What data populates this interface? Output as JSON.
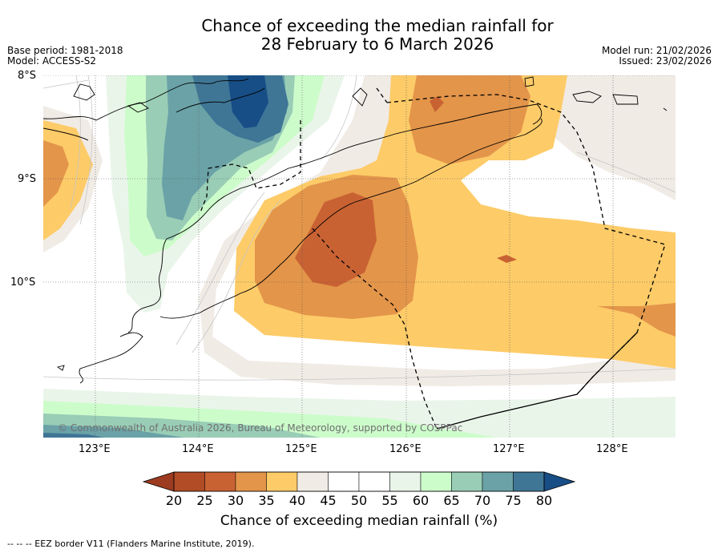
{
  "title": {
    "line1": "Chance of exceeding the median rainfall for",
    "line2": "28 February to 6 March 2026"
  },
  "meta": {
    "base_period": "Base period: 1981-2018",
    "model": "Model: ACCESS-S2",
    "model_run": "Model run: 21/02/2026",
    "issued": "Issued: 23/02/2026"
  },
  "axes": {
    "lat_labels": [
      "8°S",
      "9°S",
      "10°S"
    ],
    "lon_labels": [
      "123°E",
      "124°E",
      "125°E",
      "126°E",
      "127°E",
      "128°E"
    ]
  },
  "copyright": "© Commonwealth of Australia 2026, Bureau of Meteorology, supported by COSPPac",
  "colorbar": {
    "title": "Chance of exceeding median rainfall (%)",
    "ticks": [
      "20",
      "25",
      "30",
      "35",
      "40",
      "45",
      "50",
      "55",
      "60",
      "65",
      "70",
      "75",
      "80"
    ],
    "colors": [
      "#9c3b1f",
      "#b14c27",
      "#c96233",
      "#e3954a",
      "#fdcb68",
      "#f0ebe5",
      "#ffffff",
      "#ffffff",
      "#eaf5ea",
      "#cdfccb",
      "#99cdb6",
      "#6aa2a7",
      "#3f7696",
      "#174e86"
    ]
  },
  "legend_note": "--  --  -- EEZ border V11 (Flanders Marine Institute, 2019)."
}
